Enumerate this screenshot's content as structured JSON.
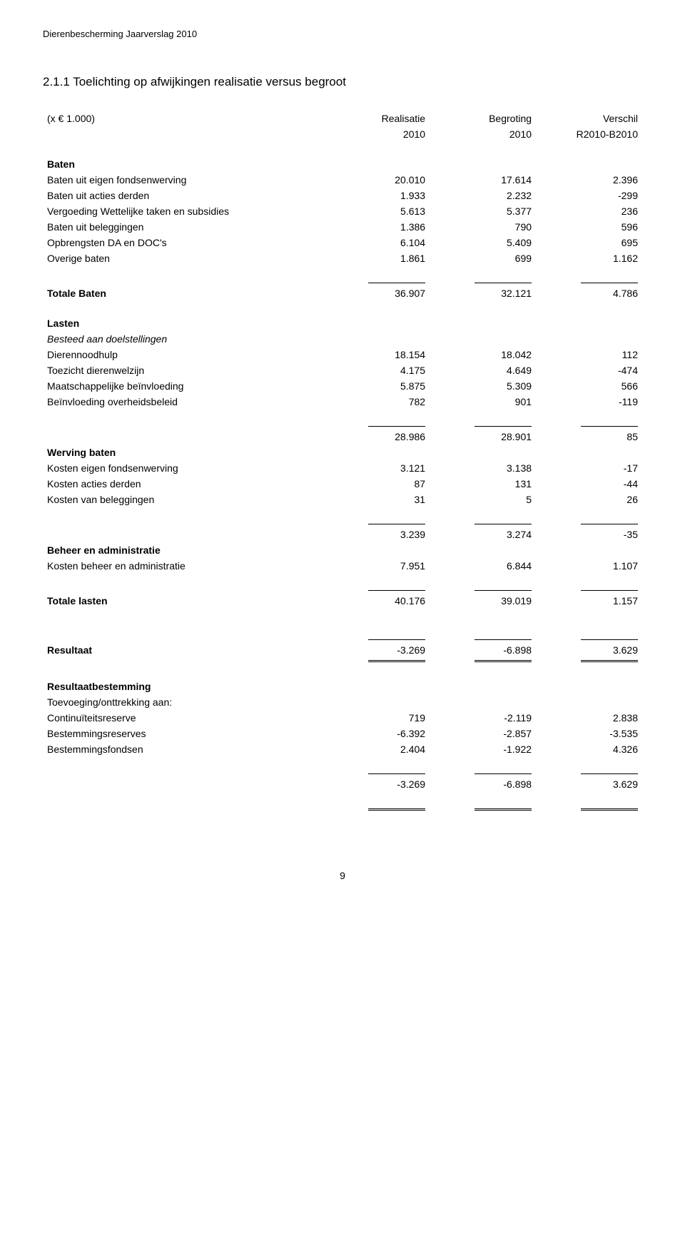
{
  "doc_header": "Dierenbescherming Jaarverslag 2010",
  "section_title": "2.1.1 Toelichting op afwijkingen realisatie versus begroot",
  "unit_note": "(x € 1.000)",
  "columns": {
    "c1a": "Realisatie",
    "c1b": "2010",
    "c2a": "Begroting",
    "c2b": "2010",
    "c3a": "Verschil",
    "c3b": "R2010-B2010"
  },
  "groups": {
    "baten_hdr": "Baten",
    "totale_baten": "Totale Baten",
    "lasten_hdr": "Lasten",
    "besteed": "Besteed aan doelstellingen",
    "werving_hdr": "Werving baten",
    "beheer_hdr": "Beheer en administratie",
    "totale_lasten": "Totale lasten",
    "resultaat": "Resultaat",
    "resultaat_best": "Resultaatbestemming",
    "toevoeging": "Toevoeging/onttrekking aan:"
  },
  "rows": {
    "b1": {
      "label": "Baten uit eigen fondsenwerving",
      "v": [
        "20.010",
        "17.614",
        "2.396"
      ]
    },
    "b2": {
      "label": "Baten uit acties derden",
      "v": [
        "1.933",
        "2.232",
        "-299"
      ]
    },
    "b3": {
      "label": "Vergoeding Wettelijke taken en subsidies",
      "v": [
        "5.613",
        "5.377",
        "236"
      ]
    },
    "b4": {
      "label": "Baten uit beleggingen",
      "v": [
        "1.386",
        "790",
        "596"
      ]
    },
    "b5": {
      "label": "Opbrengsten DA en DOC's",
      "v": [
        "6.104",
        "5.409",
        "695"
      ]
    },
    "b6": {
      "label": "Overige baten",
      "v": [
        "1.861",
        "699",
        "1.162"
      ]
    },
    "tb": {
      "v": [
        "36.907",
        "32.121",
        "4.786"
      ]
    },
    "l1": {
      "label": "Dierennoodhulp",
      "v": [
        "18.154",
        "18.042",
        "112"
      ]
    },
    "l2": {
      "label": "Toezicht dierenwelzijn",
      "v": [
        "4.175",
        "4.649",
        "-474"
      ]
    },
    "l3": {
      "label": "Maatschappelijke beïnvloeding",
      "v": [
        "5.875",
        "5.309",
        "566"
      ]
    },
    "l4": {
      "label": "Beïnvloeding overheidsbeleid",
      "v": [
        "782",
        "901",
        "-119"
      ]
    },
    "st1": {
      "v": [
        "28.986",
        "28.901",
        "85"
      ]
    },
    "w1": {
      "label": "Kosten eigen fondsenwerving",
      "v": [
        "3.121",
        "3.138",
        "-17"
      ]
    },
    "w2": {
      "label": "Kosten acties derden",
      "v": [
        "87",
        "131",
        "-44"
      ]
    },
    "w3": {
      "label": "Kosten van beleggingen",
      "v": [
        "31",
        "5",
        "26"
      ]
    },
    "st2": {
      "v": [
        "3.239",
        "3.274",
        "-35"
      ]
    },
    "a1": {
      "label": "Kosten beheer en administratie",
      "v": [
        "7.951",
        "6.844",
        "1.107"
      ]
    },
    "tl": {
      "v": [
        "40.176",
        "39.019",
        "1.157"
      ]
    },
    "res": {
      "v": [
        "-3.269",
        "-6.898",
        "3.629"
      ]
    },
    "r1": {
      "label": "Continuïteitsreserve",
      "v": [
        "719",
        "-2.119",
        "2.838"
      ]
    },
    "r2": {
      "label": "Bestemmingsreserves",
      "v": [
        "-6.392",
        "-2.857",
        "-3.535"
      ]
    },
    "r3": {
      "label": "Bestemmingsfondsen",
      "v": [
        "2.404",
        "-1.922",
        "4.326"
      ]
    },
    "rt": {
      "v": [
        "-3.269",
        "-6.898",
        "3.629"
      ]
    }
  },
  "page_number": "9",
  "style": {
    "font_family": "Arial",
    "body_fontsize_pt": 10.5,
    "title_fontsize_pt": 13,
    "text_color": "#000000",
    "background_color": "#ffffff",
    "rule_color": "#000000"
  }
}
